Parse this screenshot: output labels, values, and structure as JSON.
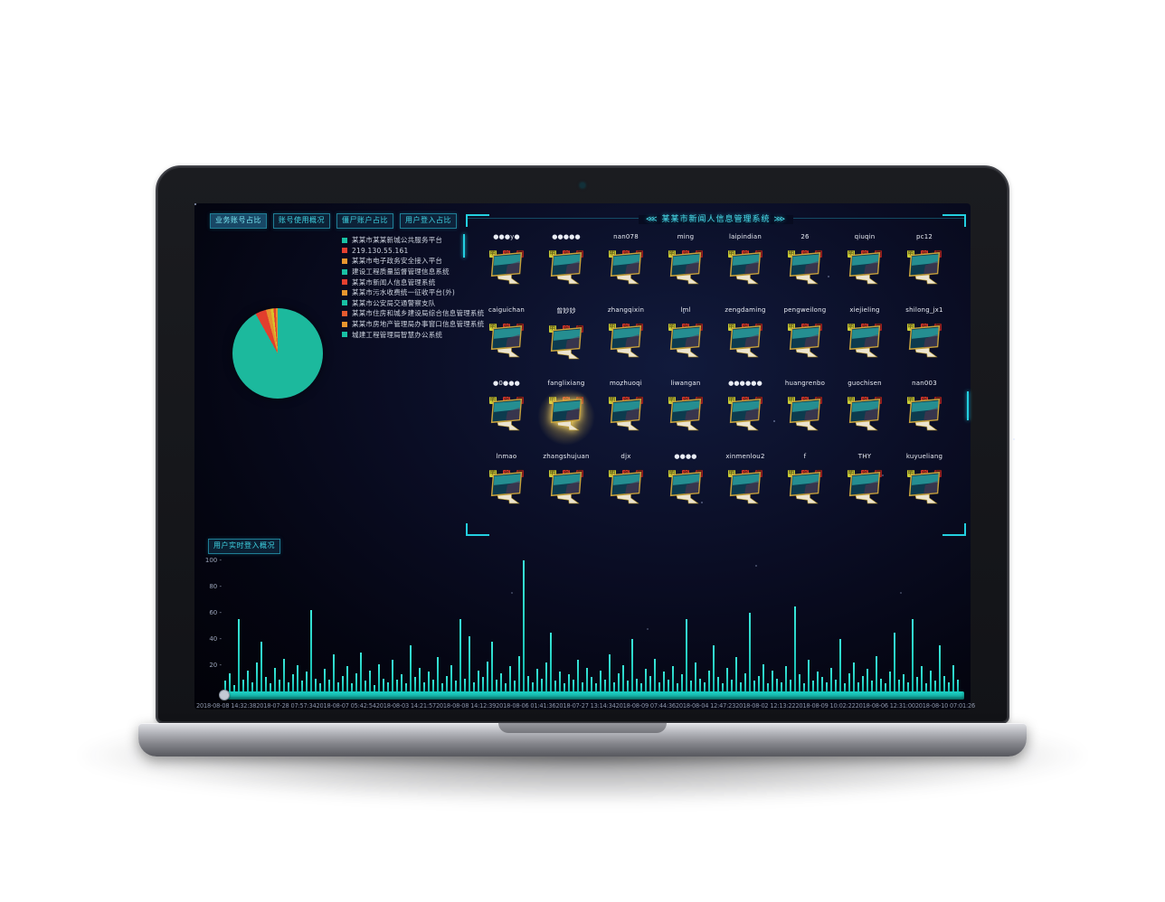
{
  "header": {
    "tabs": [
      {
        "label": "业务账号占比",
        "active": true
      },
      {
        "label": "账号使用概况",
        "active": false
      },
      {
        "label": "僵尸账户占比",
        "active": false
      },
      {
        "label": "用户登入占比",
        "active": false
      }
    ]
  },
  "legend": {
    "items": [
      {
        "label": "某某市某某新城公共服务平台",
        "color": "#18c1a4"
      },
      {
        "label": "219.130.55.161",
        "color": "#e5402f"
      },
      {
        "label": "某某市电子政务安全接入平台",
        "color": "#e8962e"
      },
      {
        "label": "建设工程质量监督管理信息系统",
        "color": "#18c1a4"
      },
      {
        "label": "某某市新闻人信息管理系统",
        "color": "#e5402f"
      },
      {
        "label": "某某市污水收费统一征收平台(外)",
        "color": "#e8962e"
      },
      {
        "label": "某某市公安局交通警察支队",
        "color": "#18c1a4"
      },
      {
        "label": "某某市住房和城乡建设局综合信息管理系统",
        "color": "#e55a2f"
      },
      {
        "label": "某某市房地产管理局办事窗口信息管理系统",
        "color": "#e8962e"
      },
      {
        "label": "城建工程管理局智慧办公系统",
        "color": "#18c1a4"
      }
    ]
  },
  "user_panel": {
    "title": "⋘ 某某市新闻人信息管理系统 ⋙",
    "badges": [
      {
        "label": "明",
        "color": "#c9cc35"
      },
      {
        "label": "弱",
        "color": "#d5352c"
      },
      {
        "label": "僵",
        "color": "#9c1f1f"
      }
    ],
    "users": [
      "●●●y●",
      "●●●●●",
      "nan078",
      "ming",
      "laipindian",
      "26",
      "qiuqin",
      "pc12",
      "caiguichan",
      "曾妙妙",
      "zhangqixin",
      "lml",
      "zengdaming",
      "pengweilong",
      "xiejieling",
      "shilong_jx1",
      "●0●●●",
      "fanglixiang",
      "mozhuoqi",
      "liwangan",
      "●●●●●●",
      "huangrenbo",
      "guochisen",
      "nan003",
      "lnmao",
      "zhangshujuan",
      "djx",
      "●●●●",
      "xinmenlou2",
      "f",
      "THY",
      "kuyueliang"
    ],
    "highlight_index": 17
  },
  "login_chart": {
    "label": "用户实时登入概况",
    "y_ticks": [
      100,
      80,
      60,
      40,
      20
    ]
  },
  "chart_data": [
    {
      "type": "pie",
      "title": "业务账号占比",
      "legend_position": "top-left-list",
      "slices": [
        {
          "value": 91.9,
          "color": "#1cb99d"
        },
        {
          "value": 3.9,
          "color": "#e23e2d"
        },
        {
          "value": 1.7,
          "color": "#e5902c"
        },
        {
          "value": 1.0,
          "color": "#d9c32a"
        },
        {
          "value": 0.8,
          "color": "#e23e2d"
        },
        {
          "value": 0.7,
          "color": "#e5902c"
        }
      ]
    },
    {
      "type": "bar",
      "title": "用户实时登入概况",
      "ylim": [
        0,
        100
      ],
      "x_labels": [
        "2018-08-08 14:32:38",
        "2018-07-28 07:57:34",
        "2018-08-07 05:42:54",
        "2018-08-03 14:21:57",
        "2018-08-08 14:12:39",
        "2018-08-06 01:41:36",
        "2018-07-27 13:14:34",
        "2018-08-09 07:44:36",
        "2018-08-04 12:47:23",
        "2018-08-02 12:13:22",
        "2018-08-09 10:02:22",
        "2018-08-06 12:31:00",
        "2018-08-10 07:01:26"
      ],
      "values": [
        8,
        14,
        5,
        55,
        9,
        16,
        7,
        22,
        38,
        11,
        6,
        18,
        9,
        25,
        7,
        13,
        20,
        8,
        15,
        62,
        10,
        6,
        17,
        9,
        28,
        7,
        12,
        19,
        6,
        14,
        30,
        8,
        16,
        5,
        21,
        10,
        7,
        24,
        9,
        13,
        6,
        35,
        11,
        18,
        7,
        15,
        9,
        26,
        6,
        12,
        20,
        8,
        55,
        10,
        42,
        7,
        16,
        11,
        23,
        38,
        9,
        14,
        6,
        19,
        8,
        27,
        100,
        12,
        7,
        17,
        10,
        22,
        45,
        8,
        15,
        6,
        13,
        9,
        24,
        7,
        18,
        11,
        6,
        16,
        9,
        28,
        7,
        14,
        20,
        8,
        40,
        10,
        6,
        17,
        12,
        25,
        7,
        15,
        9,
        19,
        6,
        13,
        55,
        8,
        22,
        10,
        7,
        16,
        35,
        11,
        6,
        18,
        9,
        26,
        7,
        14,
        60,
        8,
        12,
        21,
        6,
        16,
        10,
        7,
        19,
        9,
        65,
        13,
        6,
        24,
        8,
        15,
        11,
        7,
        18,
        9,
        40,
        6,
        14,
        22,
        7,
        12,
        17,
        8,
        27,
        10,
        6,
        15,
        45,
        9,
        13,
        7,
        55,
        11,
        19,
        6,
        16,
        8,
        35,
        12,
        7,
        20,
        9
      ]
    }
  ]
}
